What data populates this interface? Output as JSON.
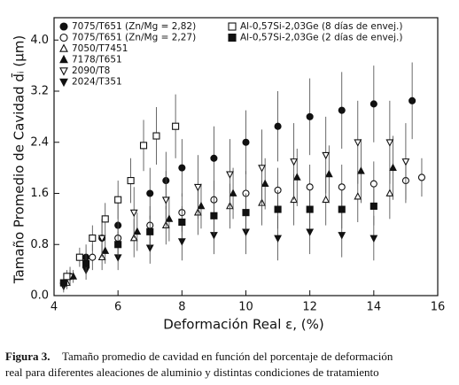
{
  "chart_data": {
    "type": "scatter",
    "xlabel": "Deformación Real ε, (%)",
    "ylabel": "Tamaño Promedio de Cavidad d̄ᵢ (µm)",
    "xlim": [
      4,
      16
    ],
    "ylim": [
      0,
      4.35
    ],
    "xticks": [
      4,
      6,
      8,
      10,
      12,
      14,
      16
    ],
    "yticks": [
      {
        "value": 0,
        "label": "0.0"
      },
      0.8,
      1.6,
      2.4,
      3.2,
      {
        "value": 4,
        "label": "4.0"
      }
    ],
    "series": [
      {
        "name": "7075/T651 (Zn/Mg = 2,82)",
        "marker": "circle",
        "filled": true,
        "color": "#111111",
        "x": [
          4.3,
          5,
          5.5,
          6,
          7,
          7.5,
          8,
          9,
          10,
          11,
          12,
          13,
          14,
          15.2
        ],
        "values": [
          0.2,
          0.6,
          0.9,
          1.1,
          1.6,
          1.8,
          2.0,
          2.15,
          2.4,
          2.65,
          2.8,
          2.9,
          3.0,
          3.05
        ],
        "errors": [
          0.1,
          0.2,
          0.3,
          0.35,
          0.4,
          0.45,
          0.45,
          0.5,
          0.5,
          0.55,
          0.6,
          0.6,
          0.6,
          0.6
        ]
      },
      {
        "name": "7075/T651 (Zn/Mg = 2,27)",
        "marker": "circle",
        "filled": false,
        "color": "#111111",
        "x": [
          4.5,
          5.2,
          6,
          7,
          8,
          9,
          10,
          11,
          12,
          13,
          14,
          15,
          15.5
        ],
        "values": [
          0.3,
          0.6,
          0.9,
          1.1,
          1.3,
          1.5,
          1.6,
          1.65,
          1.7,
          1.7,
          1.75,
          1.8,
          1.85
        ],
        "errors": [
          0.1,
          0.2,
          0.25,
          0.3,
          0.3,
          0.3,
          0.35,
          0.35,
          0.35,
          0.35,
          0.35,
          0.35,
          0.3
        ]
      },
      {
        "name": "7050/T7451",
        "marker": "triangle-up",
        "filled": false,
        "color": "#111111",
        "x": [
          4.4,
          5.5,
          6.5,
          7.5,
          8.5,
          9.5,
          10.5,
          11.5,
          12.5,
          13.5,
          14.5
        ],
        "values": [
          0.2,
          0.6,
          0.9,
          1.1,
          1.3,
          1.4,
          1.45,
          1.5,
          1.5,
          1.55,
          1.6
        ],
        "errors": [
          0.1,
          0.2,
          0.3,
          0.3,
          0.35,
          0.35,
          0.35,
          0.4,
          0.4,
          0.4,
          0.4
        ]
      },
      {
        "name": "7178/T651",
        "marker": "triangle-up",
        "filled": true,
        "color": "#111111",
        "x": [
          4.6,
          5.6,
          6.6,
          7.6,
          8.6,
          9.6,
          10.6,
          11.6,
          12.6,
          13.6,
          14.6
        ],
        "values": [
          0.3,
          0.7,
          1.0,
          1.2,
          1.4,
          1.6,
          1.75,
          1.85,
          1.9,
          1.95,
          2.0
        ],
        "errors": [
          0.1,
          0.2,
          0.3,
          0.35,
          0.35,
          0.4,
          0.4,
          0.45,
          0.45,
          0.5,
          0.5
        ]
      },
      {
        "name": "2090/T8",
        "marker": "triangle-down",
        "filled": false,
        "color": "#111111",
        "x": [
          4.5,
          5.5,
          6.5,
          7.5,
          8.5,
          9.5,
          10.5,
          11.5,
          12.5,
          13.5,
          14.5,
          15
        ],
        "values": [
          0.3,
          0.9,
          1.3,
          1.5,
          1.7,
          1.9,
          2.0,
          2.1,
          2.2,
          2.4,
          2.4,
          2.1
        ],
        "errors": [
          0.15,
          0.3,
          0.4,
          0.45,
          0.5,
          0.55,
          0.6,
          0.6,
          0.6,
          0.65,
          0.65,
          0.6
        ]
      },
      {
        "name": "2024/T351",
        "marker": "triangle-down",
        "filled": true,
        "color": "#111111",
        "x": [
          4.3,
          5,
          6,
          7,
          8,
          9,
          10,
          11,
          12,
          13,
          14
        ],
        "values": [
          0.15,
          0.4,
          0.6,
          0.75,
          0.85,
          0.95,
          1.0,
          0.9,
          1.0,
          0.95,
          0.9
        ],
        "errors": [
          0.1,
          0.15,
          0.2,
          0.25,
          0.3,
          0.3,
          0.35,
          0.35,
          0.35,
          0.35,
          0.35
        ]
      },
      {
        "name": "Al-0,57Si-2,03Ge (8 días de envej.)",
        "marker": "square",
        "filled": false,
        "color": "#111111",
        "x": [
          4.4,
          4.8,
          5.2,
          5.6,
          6,
          6.4,
          6.8,
          7.2,
          7.8
        ],
        "values": [
          0.3,
          0.6,
          0.9,
          1.2,
          1.5,
          1.8,
          2.35,
          2.5,
          2.65
        ],
        "errors": [
          0.1,
          0.15,
          0.2,
          0.25,
          0.3,
          0.35,
          0.4,
          0.45,
          0.5
        ]
      },
      {
        "name": "Al-0,57Si-2,03Ge (2 días de envej.)",
        "marker": "square",
        "filled": true,
        "color": "#111111",
        "x": [
          4.3,
          5,
          6,
          7,
          8,
          9,
          10,
          11,
          12,
          13,
          14
        ],
        "values": [
          0.2,
          0.5,
          0.8,
          1.0,
          1.15,
          1.25,
          1.3,
          1.35,
          1.35,
          1.35,
          1.4
        ],
        "errors": [
          0.1,
          0.15,
          0.2,
          0.25,
          0.25,
          0.3,
          0.3,
          0.3,
          0.3,
          0.3,
          0.3
        ]
      }
    ]
  },
  "caption": {
    "label": "Figura 3.",
    "lines": [
      "Tamaño promedio de cavidad en función del porcentaje de deformación",
      "real para diferentes aleaciones de aluminio y distintas condiciones de tratamiento"
    ]
  }
}
